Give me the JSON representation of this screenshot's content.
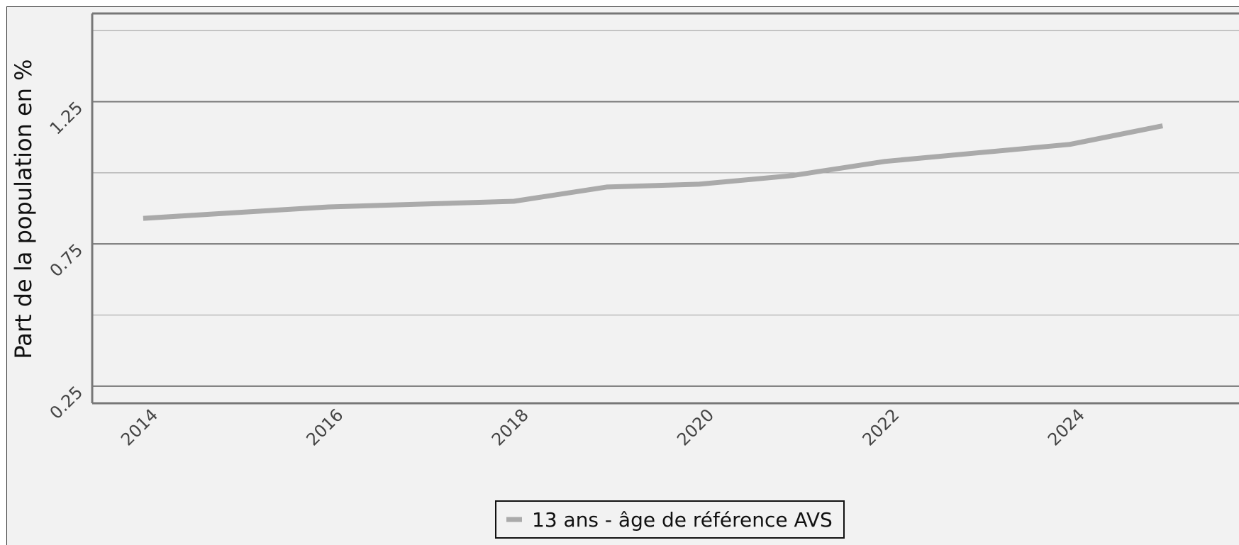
{
  "chart_data": {
    "type": "line",
    "title": "",
    "xlabel": "",
    "ylabel": "Part de la population en %",
    "x": [
      2014,
      2015,
      2016,
      2017,
      2018,
      2019,
      2020,
      2021,
      2022,
      2023,
      2024,
      2025
    ],
    "x_ticks": [
      "2014",
      "2016",
      "2018",
      "2020",
      "2022",
      "2024"
    ],
    "y_ticks": [
      "0.25",
      "0.75",
      "1.25"
    ],
    "ylim": [
      0.19,
      1.56
    ],
    "xlim": [
      2013.45,
      2026.0
    ],
    "grid": true,
    "legend_position": "bottom-center",
    "series": [
      {
        "name": "13 ans - âge de référence AVS",
        "color": "#aaaaaa",
        "values": [
          0.84,
          0.86,
          0.88,
          0.89,
          0.9,
          0.95,
          0.96,
          0.99,
          1.04,
          1.07,
          1.1,
          1.165
        ]
      }
    ]
  }
}
